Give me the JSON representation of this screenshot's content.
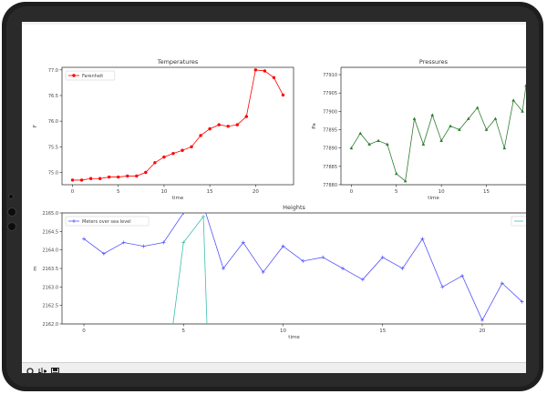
{
  "window": {
    "toolbar_icons": [
      "zoom-icon",
      "configure-subplots-icon",
      "save-icon"
    ]
  },
  "chart_data": [
    {
      "type": "line",
      "title": "Temperatures",
      "xlabel": "time",
      "ylabel": "F",
      "xlim": [
        -1.15,
        24.15
      ],
      "ylim": [
        74.76,
        77.05
      ],
      "x_ticks": [
        "0",
        "5",
        "10",
        "15",
        "20"
      ],
      "x_tick_values": [
        0,
        5,
        10,
        15,
        20
      ],
      "y_ticks": [
        "75.0",
        "75.5",
        "76.0",
        "76.5",
        "77.0"
      ],
      "y_tick_values": [
        75.0,
        75.5,
        76.0,
        76.5,
        77.0
      ],
      "legend_position": "top-left",
      "series": [
        {
          "name": "Farenheit",
          "color": "#ff0000",
          "marker": "circle",
          "x": [
            0,
            1,
            2,
            3,
            4,
            5,
            6,
            7,
            8,
            9,
            10,
            11,
            12,
            13,
            14,
            15,
            16,
            17,
            18,
            19,
            20,
            21,
            22,
            23
          ],
          "values": [
            74.85,
            74.85,
            74.88,
            74.88,
            74.91,
            74.91,
            74.93,
            74.93,
            75.0,
            75.19,
            75.3,
            75.37,
            75.43,
            75.5,
            75.72,
            75.85,
            75.93,
            75.9,
            75.93,
            76.09,
            77.0,
            76.98,
            76.85,
            76.51
          ]
        }
      ]
    },
    {
      "type": "line",
      "title": "Pressures",
      "xlabel": "time",
      "ylabel": "Pa",
      "xlim": [
        -1.15,
        19.4
      ],
      "ylim": [
        77880.0,
        77912.0
      ],
      "x_ticks": [
        "0",
        "5",
        "10",
        "15"
      ],
      "x_tick_values": [
        0,
        5,
        10,
        15
      ],
      "y_ticks": [
        "77880",
        "77885",
        "77890",
        "77895",
        "77900",
        "77905",
        "77910"
      ],
      "y_tick_values": [
        77880,
        77885,
        77890,
        77895,
        77900,
        77905,
        77910
      ],
      "series": [
        {
          "name": "",
          "color": "#2e7d32",
          "marker": "triangle",
          "x": [
            0,
            1,
            2,
            3,
            4,
            5,
            6,
            7,
            8,
            9,
            10,
            11,
            12,
            13,
            14,
            15,
            16,
            17,
            18,
            19
          ],
          "values": [
            77890,
            77894,
            77891,
            77892,
            77891,
            77883,
            77881,
            77898,
            77891,
            77899,
            77892,
            77896,
            77895,
            77898,
            77901,
            77895,
            77898,
            77890,
            77903,
            77900
          ]
        }
      ],
      "extra_points": [
        {
          "x": 19.4,
          "y": 77907
        }
      ]
    },
    {
      "type": "line",
      "title": "Heights",
      "xlabel": "time",
      "ylabel": "m",
      "xlim": [
        -1.1,
        22.2
      ],
      "ylim": [
        2162.0,
        2165.0
      ],
      "x_ticks": [
        "0",
        "5",
        "10",
        "15",
        "20"
      ],
      "x_tick_values": [
        0,
        5,
        10,
        15,
        20
      ],
      "y_ticks": [
        "2162.0",
        "2162.5",
        "2163.0",
        "2163.5",
        "2164.0",
        "2164.5",
        "2165.0"
      ],
      "y_tick_values": [
        2162.0,
        2162.5,
        2163.0,
        2163.5,
        2164.0,
        2164.5,
        2165.0
      ],
      "legend_position": "top-left",
      "series": [
        {
          "name": "Meters over sea level",
          "color": "#5555ff",
          "marker": "plus",
          "x": [
            0,
            1,
            2,
            3,
            4,
            5,
            6,
            7,
            8,
            9,
            10,
            11,
            12,
            13,
            14,
            15,
            16,
            17,
            18,
            19,
            20,
            21,
            22
          ],
          "values": [
            2164.3,
            2163.9,
            2164.2,
            2164.1,
            2164.2,
            2165.0,
            2165.2,
            2163.5,
            2164.2,
            2163.4,
            2164.1,
            2163.7,
            2163.8,
            2163.5,
            2163.2,
            2163.8,
            2163.5,
            2164.3,
            2163.0,
            2163.3,
            2162.1,
            2163.1,
            2162.6
          ]
        },
        {
          "name": "",
          "color": "#3cbfb0",
          "marker": "plus",
          "x": [
            4.0,
            5.0,
            6.0,
            6.3
          ],
          "values": [
            2160.0,
            2164.2,
            2164.9,
            2160.0
          ]
        }
      ]
    }
  ]
}
